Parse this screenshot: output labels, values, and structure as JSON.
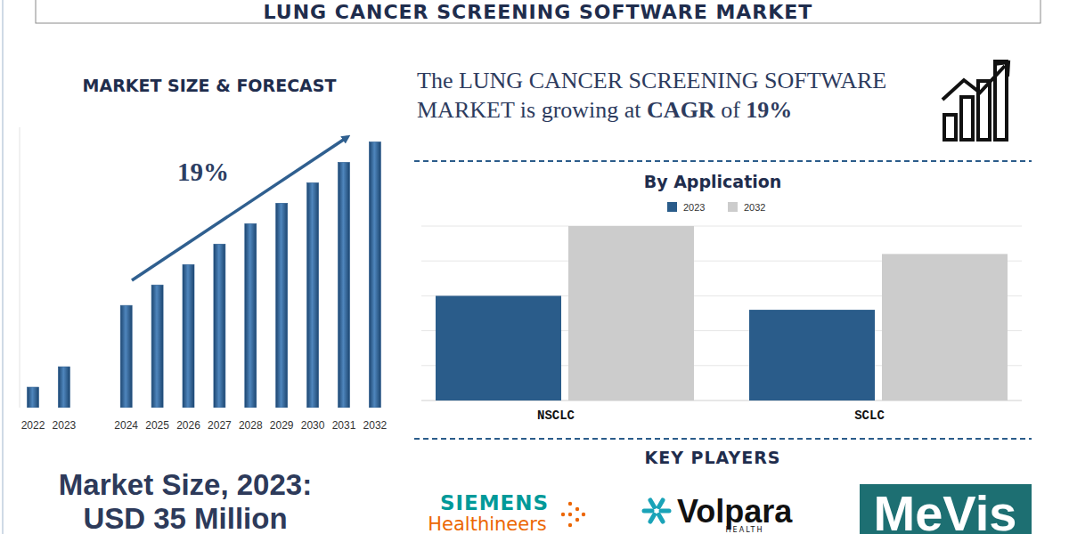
{
  "header": {
    "title": "LUNG CANCER SCREENING SOFTWARE MARKET"
  },
  "chart_data": [
    {
      "type": "bar",
      "title": "MARKET SIZE & FORECAST",
      "categories": [
        "2022",
        "2023",
        null,
        "2024",
        "2025",
        "2026",
        "2027",
        "2028",
        "2029",
        "2030",
        "2031",
        "2032"
      ],
      "values": [
        17.5,
        35,
        null,
        87.5,
        105,
        122.5,
        140,
        157.5,
        175,
        192.5,
        210,
        227.5
      ],
      "color": "#2b5c8f",
      "ylim": [
        0,
        240
      ],
      "yticks": [],
      "tick_labels": "x",
      "grid": false,
      "annotations": [
        "19%"
      ]
    },
    {
      "type": "bar",
      "title": "By Application",
      "categories": [
        "NSCLC",
        "SCLC"
      ],
      "series": [
        {
          "name": "2023",
          "color": "#2a5c8a",
          "values": [
            3.0,
            2.6
          ]
        },
        {
          "name": "2032",
          "color": "#cccccc",
          "values": [
            5.0,
            4.2
          ]
        }
      ],
      "ylim": [
        0,
        5
      ],
      "yticks": [
        0,
        1,
        2,
        3,
        4,
        5
      ],
      "grid": true,
      "legend": "top",
      "tick_labels": "x"
    }
  ],
  "headline": [
    "The LUNG CANCER SCREENING SOFTWARE MARKET is growing at ",
    "CAGR",
    " of ",
    "19%"
  ],
  "market_size": [
    "Market Size, 2023:",
    "USD 35 Million"
  ],
  "key_players": {
    "title": "KEY PLAYERS",
    "players": [
      {
        "name": "SIEMENS",
        "sub": "Healthineers"
      },
      {
        "name": "Volpara",
        "sub": "HEALTH"
      },
      {
        "name": "MeVis"
      }
    ]
  }
}
